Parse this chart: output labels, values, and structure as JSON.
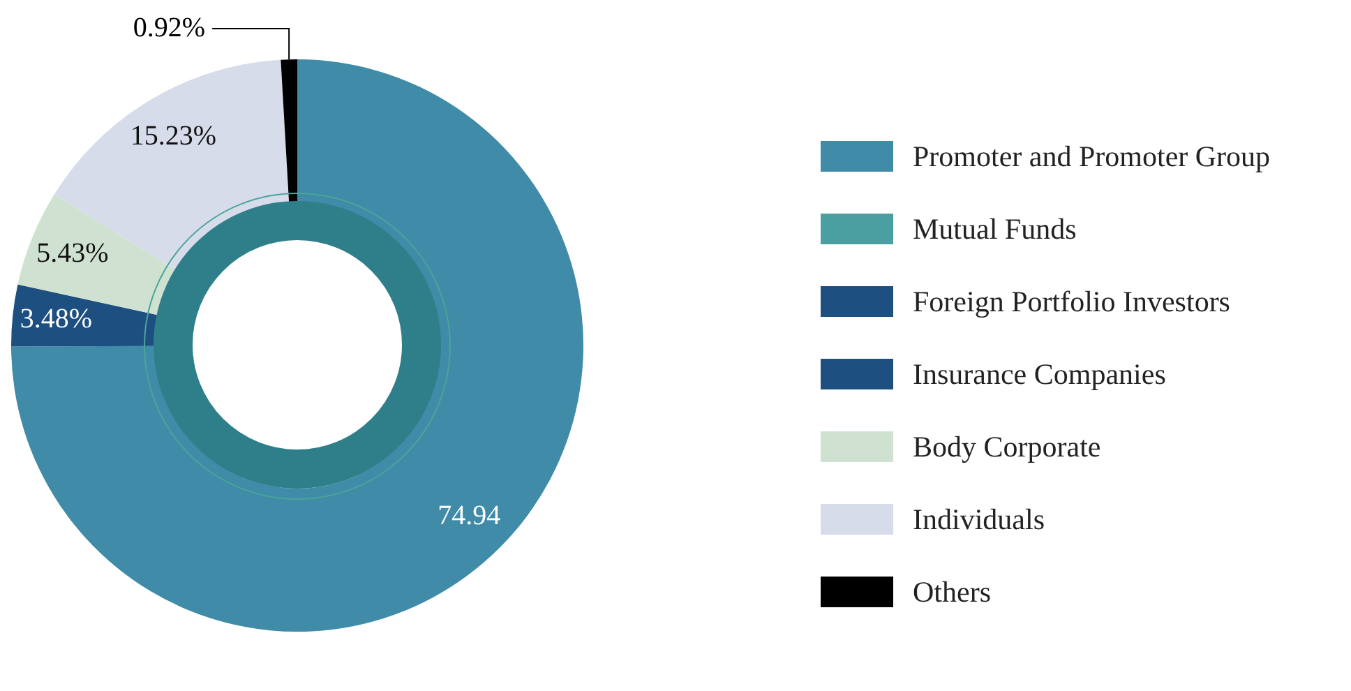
{
  "chart_data": {
    "type": "donut",
    "categories": [
      "Promoter and Promoter Group",
      "Mutual Funds",
      "Foreign Portfolio Investors",
      "Insurance Companies",
      "Body Corporate",
      "Individuals",
      "Others"
    ],
    "values": [
      74.94,
      null,
      3.48,
      null,
      5.43,
      15.23,
      0.92
    ],
    "colors": [
      "#3f8ba8",
      "#4a9fa0",
      "#1d4f80",
      "#1d4f80",
      "#cfe1d1",
      "#d7dcea",
      "#000000"
    ],
    "value_labels": [
      "74.94",
      null,
      "3.48%",
      null,
      "5.43%",
      "15.23%",
      "0.92%"
    ],
    "legend": "right"
  }
}
